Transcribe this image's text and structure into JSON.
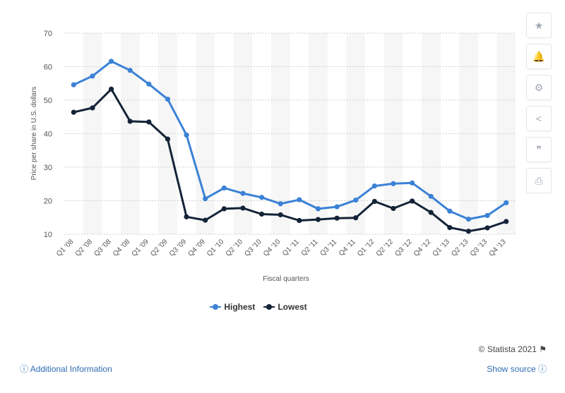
{
  "chart_data": {
    "type": "line",
    "categories": [
      "Q1 '08",
      "Q2 '08",
      "Q3 '08",
      "Q4 '08",
      "Q1 '09",
      "Q2 '09",
      "Q3 '09",
      "Q4 '09",
      "Q1 '10",
      "Q2 '10",
      "Q3 '10",
      "Q4 '10",
      "Q1 '11",
      "Q2 '11",
      "Q3 '11",
      "Q4 '11",
      "Q1 '12",
      "Q2 '12",
      "Q3 '12",
      "Q4 '12",
      "Q1 '13",
      "Q2 '13",
      "Q3 '13",
      "Q4 '13"
    ],
    "series": [
      {
        "name": "Highest",
        "color": "#3b82d6",
        "values": [
          54.6,
          57.2,
          61.6,
          58.9,
          54.8,
          50.3,
          39.6,
          20.6,
          23.8,
          22.2,
          21.0,
          19.1,
          20.3,
          17.6,
          18.2,
          20.2,
          24.4,
          25.1,
          25.3,
          21.3,
          16.9,
          14.5,
          15.6,
          19.4
        ]
      },
      {
        "name": "Lowest",
        "color": "#142337",
        "values": [
          46.4,
          47.7,
          53.3,
          43.7,
          43.5,
          38.4,
          15.2,
          14.2,
          17.6,
          17.8,
          16.0,
          15.8,
          14.1,
          14.4,
          14.8,
          14.9,
          19.8,
          17.7,
          19.9,
          16.5,
          12.0,
          10.9,
          11.9,
          13.8
        ]
      }
    ],
    "xlabel": "Fiscal quarters",
    "ylabel": "Price per share in U.S. dollars",
    "ylim": [
      10,
      70
    ],
    "yticks": [
      10,
      20,
      30,
      40,
      50,
      60,
      70
    ],
    "grid": true,
    "legend_position": "bottom"
  },
  "toolbar": {
    "icons": [
      "star-icon",
      "bell-icon",
      "gear-icon",
      "share-icon",
      "quote-icon",
      "print-icon"
    ],
    "glyphs": [
      "★",
      "🔔",
      "⚙",
      "<",
      "❞",
      "⎙"
    ]
  },
  "footer": {
    "credit": "© Statista 2021",
    "additional_info": "Additional Information",
    "show_source": "Show source"
  }
}
